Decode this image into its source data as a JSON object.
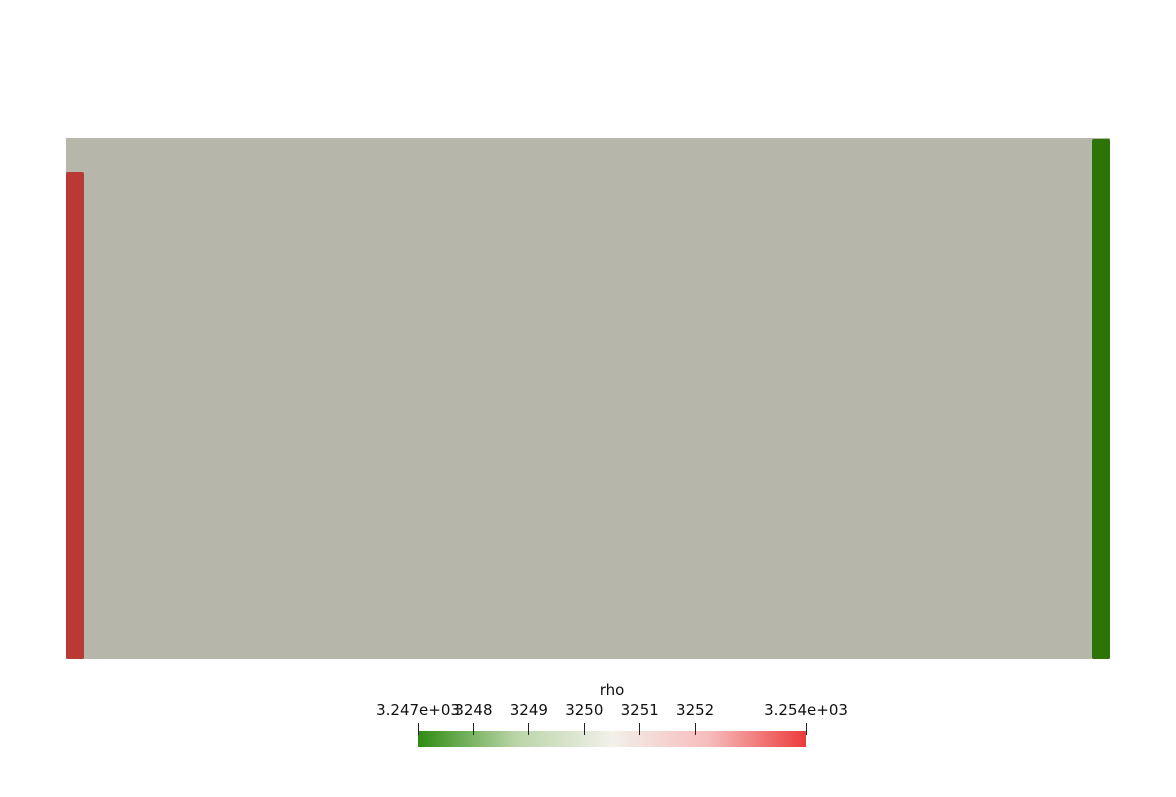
{
  "scene": {
    "domain_color": "#b6b6aa",
    "left_boundary_color": "#b93935",
    "right_boundary_color": "#2c7408"
  },
  "colorbar": {
    "title": "rho",
    "gradient": [
      "#2e8b12",
      "#b9d4a6",
      "#f2f0ea",
      "#f7bcbc",
      "#ec3b3b"
    ],
    "range": [
      3247,
      3254
    ],
    "ticks": [
      {
        "value": 3247,
        "label": "3.247e+03"
      },
      {
        "value": 3248,
        "label": "3248"
      },
      {
        "value": 3249,
        "label": "3249"
      },
      {
        "value": 3250,
        "label": "3250"
      },
      {
        "value": 3251,
        "label": "3251"
      },
      {
        "value": 3252,
        "label": "3252"
      },
      {
        "value": 3254,
        "label": "3.254e+03"
      }
    ]
  }
}
